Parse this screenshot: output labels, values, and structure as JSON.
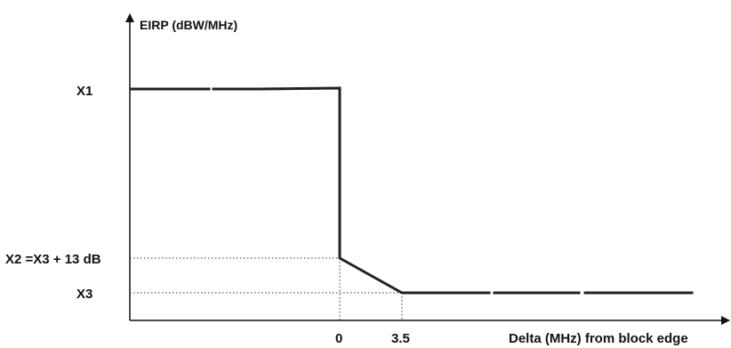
{
  "chart_data": {
    "type": "line",
    "ylabel": "EIRP (dBW/MHz)",
    "xlabel": "Delta (MHz) from block edge",
    "x_ticks": [
      "0",
      "3.5"
    ],
    "y_ticks": [
      "X1",
      "X2 =X3 + 13 dB",
      "X3"
    ],
    "series": [
      {
        "points": [
          {
            "x": "left of 0",
            "y": "X1"
          },
          {
            "x": "0",
            "y": "X1"
          },
          {
            "x": "0",
            "y": "X2 =X3 + 13 dB"
          },
          {
            "x": "3.5",
            "y": "X3"
          },
          {
            "x": "right of 3.5",
            "y": "X3"
          }
        ]
      }
    ],
    "reference_lines": [
      "dotted from X2 level to the curve",
      "dotted from X3 level to the curve",
      "dotted vertical at 0",
      "dotted vertical at 3.5"
    ],
    "grid": false,
    "legend": "none",
    "colors": {
      "line": "#222222",
      "axis": "#111111",
      "text": "#111111"
    }
  }
}
